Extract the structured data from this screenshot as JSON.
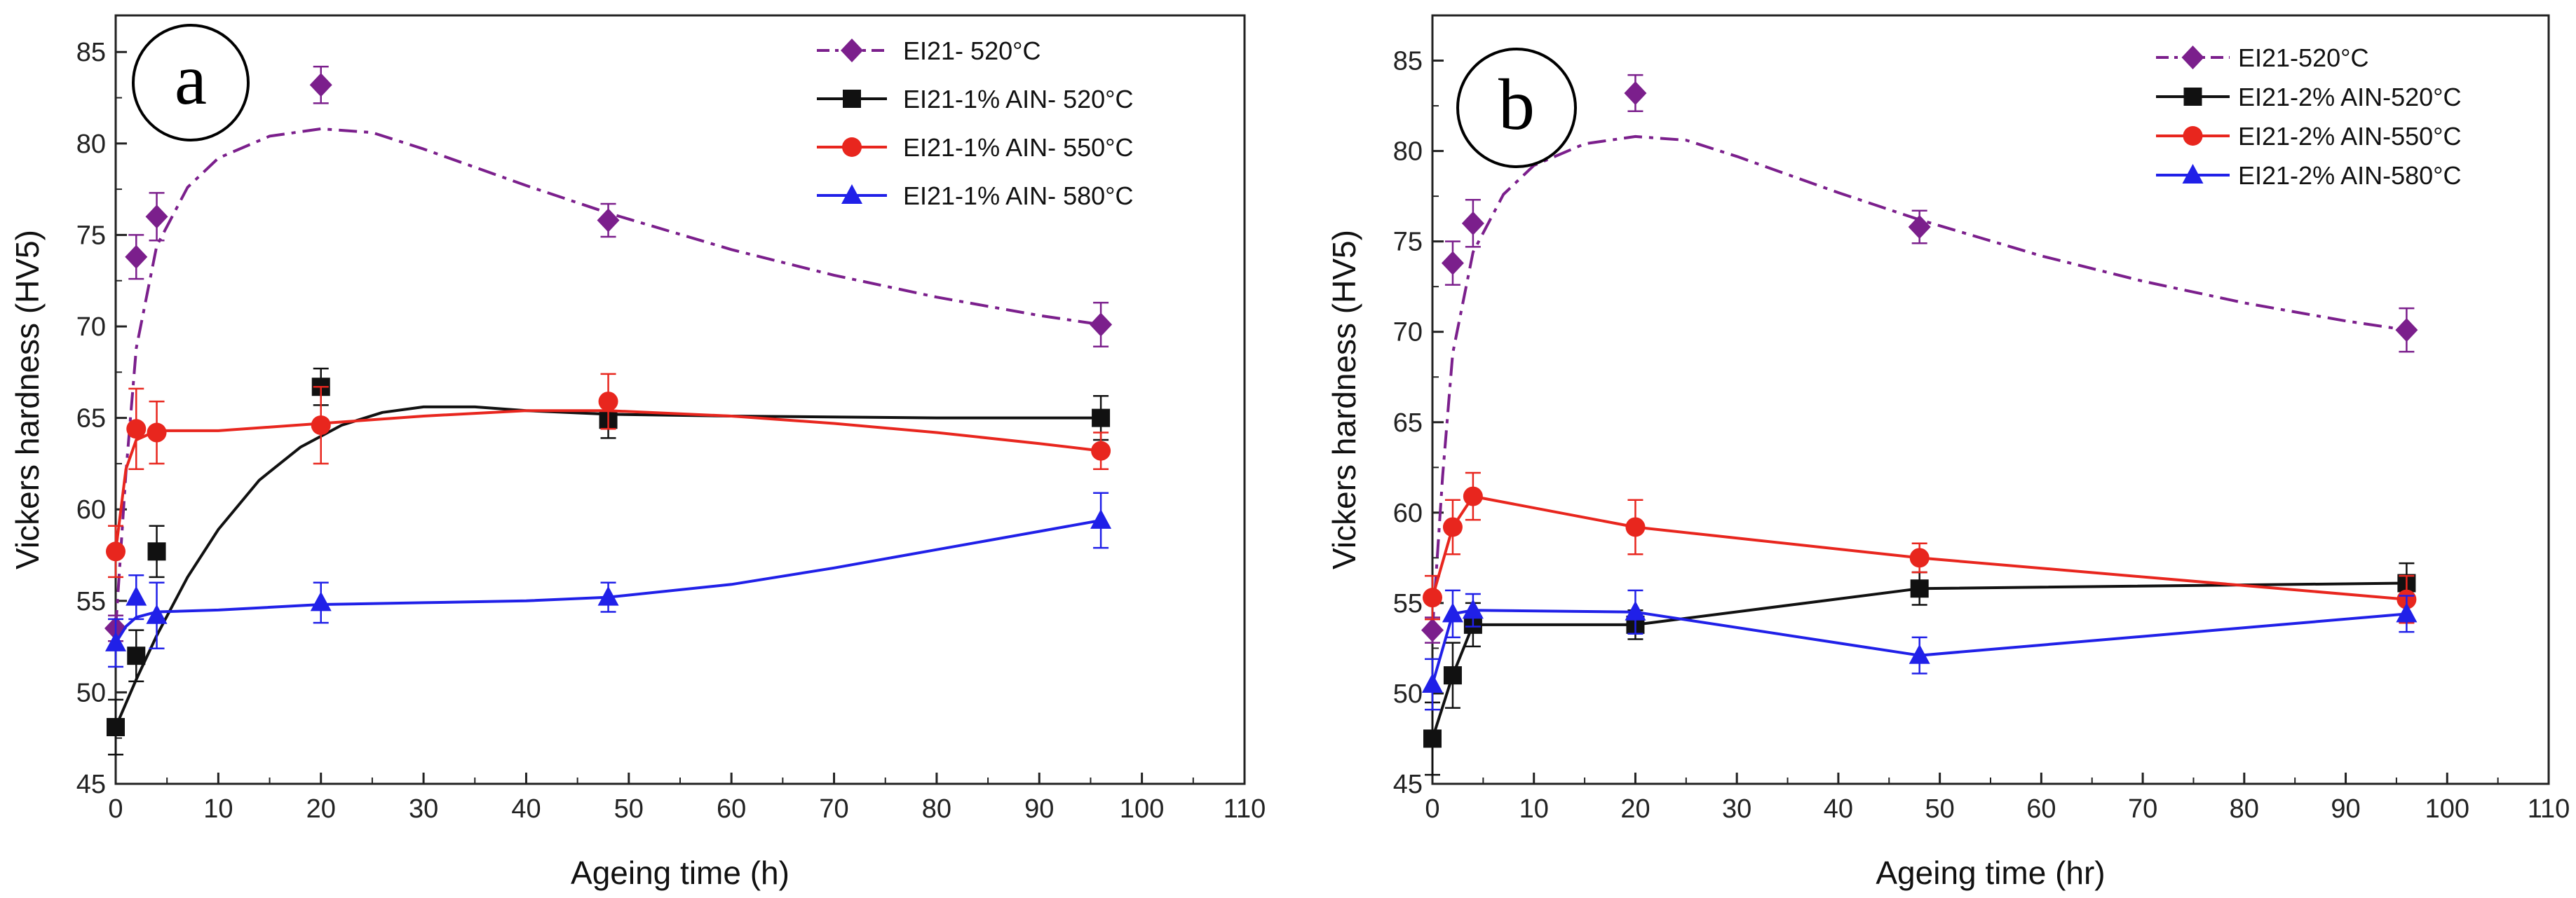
{
  "chart_data": [
    {
      "type": "line",
      "panel_label": "a",
      "xlabel": "Ageing time (h)",
      "ylabel": "Vickers hardness (HV5)",
      "xlim": [
        0,
        110
      ],
      "ylim": [
        45,
        87
      ],
      "xticks": [
        0,
        10,
        20,
        30,
        40,
        50,
        60,
        70,
        80,
        90,
        100,
        110
      ],
      "yticks": [
        45,
        50,
        55,
        60,
        65,
        70,
        75,
        80,
        85
      ],
      "legend_position": "top-right",
      "series": [
        {
          "name": "EI21- 520°C",
          "color": "#7b1f8c",
          "marker": "diamond",
          "line_style": "dashdot",
          "x": [
            0,
            2,
            4,
            20,
            48,
            96
          ],
          "y": [
            53.5,
            73.8,
            76.0,
            83.2,
            75.8,
            70.1
          ],
          "err": [
            0.7,
            1.2,
            1.3,
            1.0,
            0.9,
            1.2
          ],
          "fit": [
            [
              0,
              53.5
            ],
            [
              1,
              62
            ],
            [
              2,
              68.8
            ],
            [
              4,
              74.4
            ],
            [
              7,
              77.6
            ],
            [
              10,
              79.2
            ],
            [
              15,
              80.4
            ],
            [
              20,
              80.8
            ],
            [
              25,
              80.6
            ],
            [
              30,
              79.7
            ],
            [
              40,
              77.7
            ],
            [
              48,
              76.2
            ],
            [
              60,
              74.2
            ],
            [
              70,
              72.8
            ],
            [
              80,
              71.6
            ],
            [
              90,
              70.6
            ],
            [
              96,
              70.1
            ]
          ]
        },
        {
          "name": "EI21-1% AIN- 520°C",
          "color": "#111111",
          "marker": "square",
          "line_style": "solid",
          "x": [
            0,
            2,
            4,
            20,
            48,
            96
          ],
          "y": [
            48.1,
            52.0,
            57.7,
            66.7,
            64.9,
            65.0
          ],
          "err": [
            1.5,
            1.4,
            1.4,
            1.0,
            1.0,
            1.2
          ],
          "fit": [
            [
              0,
              48.1
            ],
            [
              2,
              50.7
            ],
            [
              4,
              53.1
            ],
            [
              7,
              56.3
            ],
            [
              10,
              58.9
            ],
            [
              14,
              61.6
            ],
            [
              18,
              63.4
            ],
            [
              22,
              64.6
            ],
            [
              26,
              65.3
            ],
            [
              30,
              65.6
            ],
            [
              35,
              65.6
            ],
            [
              40,
              65.4
            ],
            [
              48,
              65.2
            ],
            [
              60,
              65.1
            ],
            [
              80,
              65.0
            ],
            [
              96,
              65.0
            ]
          ]
        },
        {
          "name": "EI21-1% AIN- 550°C",
          "color": "#e8261e",
          "marker": "circle",
          "line_style": "solid",
          "x": [
            0,
            2,
            4,
            20,
            48,
            96
          ],
          "y": [
            57.7,
            64.4,
            64.2,
            64.6,
            65.9,
            63.2
          ],
          "err": [
            1.4,
            2.2,
            1.7,
            2.1,
            1.5,
            1.0
          ],
          "fit": [
            [
              0,
              57.7
            ],
            [
              1,
              62.2
            ],
            [
              2,
              63.8
            ],
            [
              4,
              64.3
            ],
            [
              10,
              64.3
            ],
            [
              20,
              64.7
            ],
            [
              30,
              65.1
            ],
            [
              40,
              65.4
            ],
            [
              48,
              65.4
            ],
            [
              60,
              65.1
            ],
            [
              70,
              64.7
            ],
            [
              80,
              64.2
            ],
            [
              90,
              63.6
            ],
            [
              96,
              63.2
            ]
          ]
        },
        {
          "name": "EI21-1% AIN- 580°C",
          "color": "#2020e8",
          "marker": "triangle",
          "line_style": "solid",
          "x": [
            0,
            2,
            4,
            20,
            48,
            96
          ],
          "y": [
            52.7,
            55.2,
            54.2,
            54.9,
            55.2,
            59.4
          ],
          "err": [
            1.3,
            1.2,
            1.8,
            1.1,
            0.8,
            1.5
          ],
          "fit": [
            [
              0,
              52.7
            ],
            [
              1,
              53.6
            ],
            [
              2,
              54.1
            ],
            [
              4,
              54.4
            ],
            [
              10,
              54.5
            ],
            [
              20,
              54.8
            ],
            [
              30,
              54.9
            ],
            [
              40,
              55.0
            ],
            [
              48,
              55.2
            ],
            [
              60,
              55.9
            ],
            [
              70,
              56.8
            ],
            [
              80,
              57.8
            ],
            [
              90,
              58.8
            ],
            [
              96,
              59.4
            ]
          ]
        }
      ]
    },
    {
      "type": "line",
      "panel_label": "b",
      "xlabel": "Ageing time (hr)",
      "ylabel": "Vickers hardness (HV5)",
      "xlim": [
        0,
        110
      ],
      "ylim": [
        45,
        87.5
      ],
      "xticks": [
        0,
        10,
        20,
        30,
        40,
        50,
        60,
        70,
        80,
        90,
        100,
        110
      ],
      "yticks": [
        45,
        50,
        55,
        60,
        65,
        70,
        75,
        80,
        85
      ],
      "legend_position": "top-right",
      "series": [
        {
          "name": "EI21-520°C",
          "color": "#7b1f8c",
          "marker": "diamond",
          "line_style": "dashdot",
          "x": [
            0,
            2,
            4,
            20,
            48,
            96
          ],
          "y": [
            53.5,
            73.8,
            76.0,
            83.2,
            75.8,
            70.1
          ],
          "err": [
            0.7,
            1.2,
            1.3,
            1.0,
            0.9,
            1.2
          ],
          "fit": [
            [
              0,
              53.5
            ],
            [
              1,
              62
            ],
            [
              2,
              68.8
            ],
            [
              4,
              74.4
            ],
            [
              7,
              77.6
            ],
            [
              10,
              79.2
            ],
            [
              15,
              80.4
            ],
            [
              20,
              80.8
            ],
            [
              25,
              80.6
            ],
            [
              30,
              79.7
            ],
            [
              40,
              77.7
            ],
            [
              48,
              76.2
            ],
            [
              60,
              74.2
            ],
            [
              70,
              72.8
            ],
            [
              80,
              71.6
            ],
            [
              90,
              70.6
            ],
            [
              96,
              70.1
            ]
          ]
        },
        {
          "name": "EI21-2% AIN-520°C",
          "color": "#111111",
          "marker": "square",
          "line_style": "solid",
          "x": [
            0,
            2,
            4,
            20,
            48,
            96
          ],
          "y": [
            47.5,
            51.0,
            53.8,
            53.8,
            55.8,
            56.1
          ],
          "err": [
            2.0,
            1.8,
            1.2,
            0.8,
            0.9,
            1.1
          ],
          "fit": [
            [
              0,
              47.5
            ],
            [
              2,
              51.0
            ],
            [
              4,
              53.8
            ],
            [
              20,
              53.8
            ],
            [
              48,
              55.8
            ],
            [
              96,
              56.1
            ]
          ]
        },
        {
          "name": "EI21-2% AIN-550°C",
          "color": "#e8261e",
          "marker": "circle",
          "line_style": "solid",
          "x": [
            0,
            2,
            4,
            20,
            48,
            96
          ],
          "y": [
            55.3,
            59.2,
            60.9,
            59.2,
            57.5,
            55.2
          ],
          "err": [
            1.2,
            1.5,
            1.3,
            1.5,
            0.8,
            1.3
          ],
          "fit": [
            [
              0,
              55.3
            ],
            [
              2,
              59.2
            ],
            [
              4,
              60.9
            ],
            [
              20,
              59.2
            ],
            [
              48,
              57.5
            ],
            [
              96,
              55.2
            ]
          ]
        },
        {
          "name": "EI21-2% AIN-580°C",
          "color": "#2020e8",
          "marker": "triangle",
          "line_style": "solid",
          "x": [
            0,
            2,
            4,
            20,
            48,
            96
          ],
          "y": [
            50.5,
            54.4,
            54.6,
            54.5,
            52.1,
            54.4
          ],
          "err": [
            1.4,
            1.3,
            0.9,
            1.2,
            1.0,
            1.0
          ],
          "fit": [
            [
              0,
              50.5
            ],
            [
              2,
              54.4
            ],
            [
              4,
              54.6
            ],
            [
              20,
              54.5
            ],
            [
              48,
              52.1
            ],
            [
              96,
              54.4
            ]
          ]
        }
      ]
    }
  ]
}
